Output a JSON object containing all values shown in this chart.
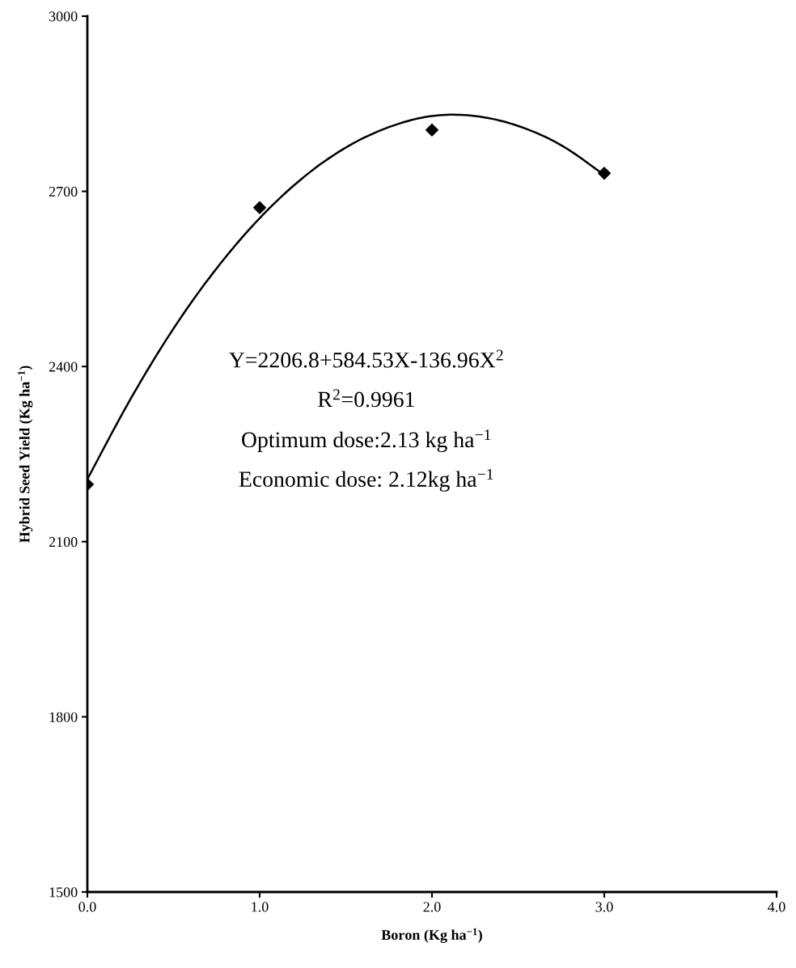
{
  "chart_data": {
    "type": "scatter",
    "xlabel": "Boron (Kg ha$^{−1}$)",
    "ylabel": "Hybrid Seed Yield (Kg ha$^{−1}$)",
    "xlim": [
      0,
      4
    ],
    "xticks": [
      {
        "value": 0,
        "label": "0.0"
      },
      {
        "value": 1,
        "label": "1.0"
      },
      {
        "value": 2,
        "label": "2.0"
      },
      {
        "value": 3,
        "label": "3.0"
      },
      {
        "value": 4,
        "label": "4.0"
      }
    ],
    "ylim": [
      1500,
      3000
    ],
    "yticks": [
      1500,
      1800,
      2100,
      2400,
      2700,
      3000
    ],
    "grid": false,
    "marker": "diamond",
    "series": [
      {
        "color": "#000000",
        "x": [
          0,
          1,
          2,
          3
        ],
        "values": [
          2198,
          2672,
          2805,
          2731
        ]
      },
      {
        "type": "line",
        "color": "#000000",
        "marker": "none",
        "line_style": "solid",
        "x": [
          0,
          0.25,
          0.5,
          0.75,
          1,
          1.25,
          1.5,
          1.75,
          2,
          2.25,
          2.5,
          2.75,
          3
        ],
        "values": [
          2207,
          2344,
          2465,
          2568,
          2654,
          2723,
          2775,
          2810,
          2829,
          2829,
          2812,
          2779,
          2728
        ]
      }
    ],
    "annotations": [
      "Y=2206.8+584.53X-136.96X$^{2}$",
      "R$^{2}$=0.9961",
      "Optimum dose:2.13 kg ha$^{−1}$",
      "Economic dose: 2.12kg ha$^{−1}$"
    ]
  }
}
